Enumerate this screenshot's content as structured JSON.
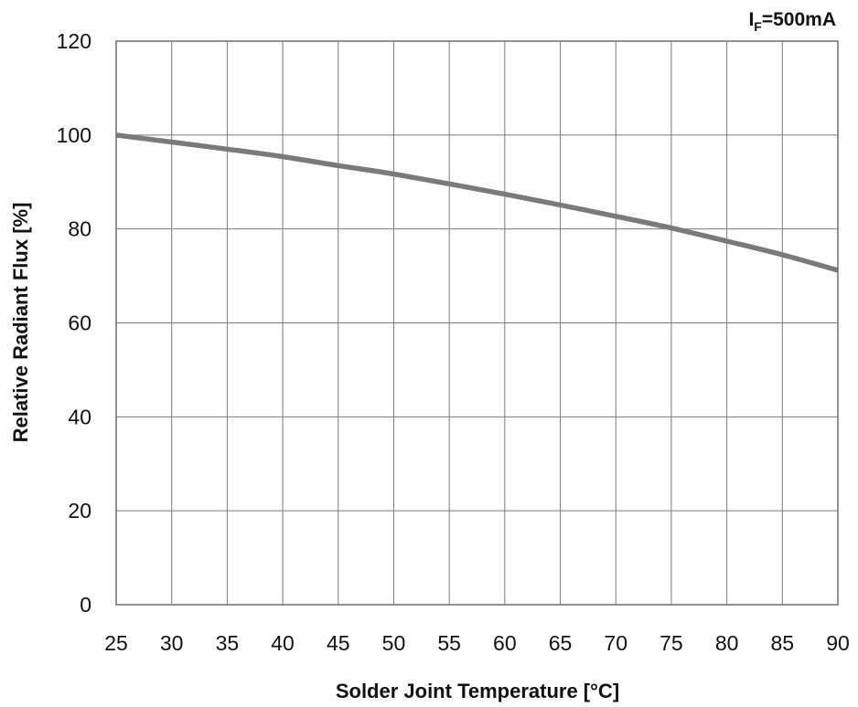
{
  "chart_data": {
    "type": "line",
    "title": "",
    "annotation": {
      "symbol": "I",
      "subscript": "F",
      "value": "=500mA"
    },
    "xlabel": "Solder Joint Temperature [°C]",
    "ylabel": "Relative Radiant Flux [%]",
    "xlim": [
      25,
      90
    ],
    "ylim": [
      0,
      120
    ],
    "xticks": [
      "25",
      "30",
      "35",
      "40",
      "45",
      "50",
      "55",
      "60",
      "65",
      "70",
      "75",
      "80",
      "85",
      "90"
    ],
    "yticks": [
      "0",
      "20",
      "40",
      "60",
      "80",
      "100",
      "120"
    ],
    "grid": true,
    "series": [
      {
        "x": [
          25,
          30,
          35,
          40,
          45,
          50,
          55,
          60,
          65,
          70,
          75,
          80,
          85,
          90
        ],
        "y": [
          100,
          98.5,
          97,
          95.4,
          93.5,
          91.7,
          89.6,
          87.4,
          85.1,
          82.7,
          80.2,
          77.4,
          74.5,
          71.2
        ],
        "color": "#7a7a7a"
      }
    ]
  }
}
